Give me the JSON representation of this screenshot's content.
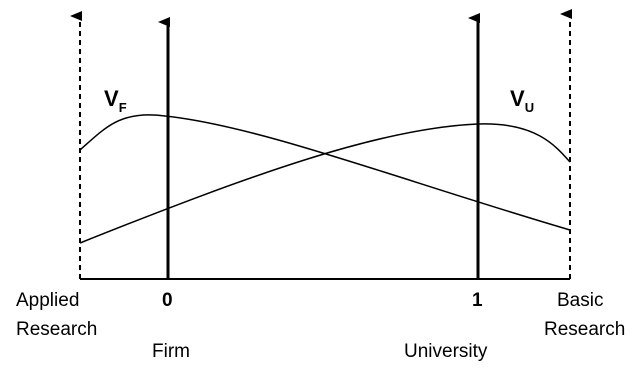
{
  "diagram": {
    "left_end": {
      "line1": "Applied",
      "line2": "Research"
    },
    "right_end": {
      "line1": "Basic",
      "line2": "Research"
    },
    "tick_firm": "0",
    "tick_university": "1",
    "firm_label": "Firm",
    "university_label": "University",
    "curve_firm": {
      "main": "V",
      "sub": "F"
    },
    "curve_university": {
      "main": "V",
      "sub": "U"
    }
  }
}
